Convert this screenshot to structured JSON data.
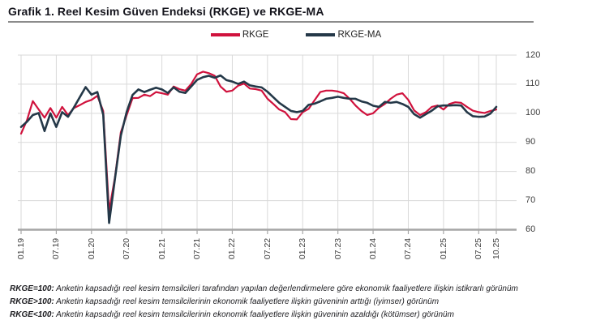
{
  "title": "Grafik 1. Reel Kesim Güven Endeksi (RKGE) ve RKGE-MA",
  "legend": [
    {
      "label": "RKGE",
      "color": "#d0123d"
    },
    {
      "label": "RKGE-MA",
      "color": "#243848"
    }
  ],
  "colors": {
    "rkge": "#d0123d",
    "rkge_ma": "#243848",
    "gridline": "#d9d9d9",
    "axis": "#a6a6a6",
    "tick_text": "#404040"
  },
  "chart_data": {
    "type": "line",
    "frequency": "monthly",
    "x_start": "01.19",
    "x_end": "10.25",
    "x_tick_labels": [
      "01.19",
      "07.19",
      "01.20",
      "07.20",
      "01.21",
      "07.21",
      "01.22",
      "07.22",
      "01.23",
      "07.23",
      "01.24",
      "07.24",
      "01.25",
      "07.25",
      "10.25"
    ],
    "x_tick_indices": [
      0,
      6,
      12,
      18,
      24,
      30,
      36,
      42,
      48,
      54,
      60,
      66,
      72,
      78,
      81
    ],
    "y_ticks": [
      60,
      70,
      80,
      90,
      100,
      110,
      120
    ],
    "ylim": [
      60,
      120
    ],
    "grid": true,
    "legend_position": "top",
    "series": [
      {
        "name": "RKGE",
        "color": "#d0123d",
        "values": [
          93.0,
          97.6,
          104.2,
          101.3,
          98.5,
          101.8,
          98.5,
          102.2,
          99.4,
          101.8,
          102.8,
          103.9,
          104.6,
          106.0,
          100.8,
          66.4,
          78.0,
          93.5,
          99.4,
          105.2,
          105.3,
          106.4,
          105.9,
          107.3,
          106.9,
          106.4,
          109.2,
          108.3,
          107.8,
          110.1,
          113.4,
          114.3,
          113.8,
          112.9,
          109.2,
          107.4,
          107.8,
          109.5,
          110.2,
          108.5,
          108.3,
          107.8,
          105.0,
          103.2,
          101.3,
          100.4,
          98.0,
          97.9,
          100.4,
          101.5,
          104.4,
          107.3,
          107.8,
          107.8,
          107.5,
          106.9,
          105.0,
          102.7,
          100.8,
          99.4,
          100.0,
          101.9,
          103.2,
          105.0,
          106.4,
          106.9,
          104.6,
          101.0,
          99.4,
          100.4,
          102.2,
          102.7,
          101.3,
          103.2,
          103.8,
          103.6,
          102.2,
          100.9,
          100.4,
          100.1,
          100.8,
          101.3
        ]
      },
      {
        "name": "RKGE-MA",
        "color": "#243848",
        "values": [
          95.3,
          97.1,
          99.4,
          100.1,
          93.9,
          100.0,
          95.3,
          100.4,
          98.8,
          102.0,
          105.5,
          109.0,
          106.4,
          107.3,
          99.5,
          62.3,
          77.5,
          92.3,
          100.5,
          106.3,
          108.2,
          107.3,
          108.1,
          108.8,
          108.2,
          107.0,
          108.9,
          107.4,
          107.0,
          109.2,
          111.5,
          112.4,
          112.9,
          112.2,
          113.0,
          111.4,
          110.9,
          110.1,
          110.9,
          109.6,
          109.2,
          108.9,
          107.4,
          105.5,
          103.6,
          102.2,
          100.8,
          100.4,
          100.8,
          102.9,
          103.3,
          104.1,
          105.0,
          105.3,
          105.7,
          105.3,
          105.0,
          105.0,
          104.1,
          103.6,
          102.6,
          102.2,
          103.9,
          103.6,
          103.9,
          103.2,
          102.2,
          99.7,
          98.5,
          99.7,
          100.9,
          102.4,
          102.7,
          102.7,
          102.8,
          102.7,
          100.4,
          99.0,
          98.8,
          98.9,
          99.9,
          102.2
        ]
      }
    ]
  },
  "footnotes": [
    {
      "lead": "RKGE=100:",
      "text": "Anketin kapsadığı reel kesim temsilcileri tarafından yapılan değerlendirmelere göre ekonomik faaliyetlere ilişkin istikrarlı görünüm"
    },
    {
      "lead": "RKGE>100:",
      "text": "Anketin kapsadığı reel kesim temsilcilerinin ekonomik faaliyetlere ilişkin güveninin arttığı (iyimser) görünüm"
    },
    {
      "lead": "RKGE<100:",
      "text": "Anketin kapsadığı reel kesim temsilcilerinin ekonomik faaliyetlere ilişkin güveninin azaldığı (kötümser) görünüm"
    }
  ]
}
